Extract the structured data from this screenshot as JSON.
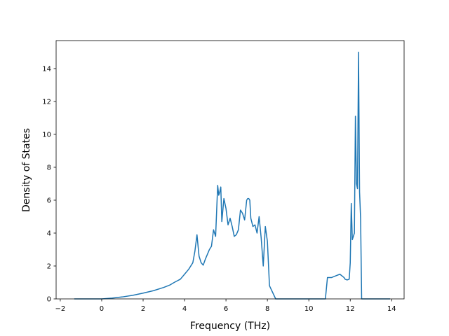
{
  "chart_data": {
    "type": "line",
    "title": "",
    "xlabel": "Frequency (THz)",
    "ylabel": "Density of States",
    "xlim": [
      -2.2,
      14.6
    ],
    "ylim": [
      0,
      15.7
    ],
    "x_ticks": [
      -2,
      0,
      2,
      4,
      6,
      8,
      10,
      12,
      14
    ],
    "y_ticks": [
      0,
      2,
      4,
      6,
      8,
      10,
      12,
      14
    ],
    "x_tick_labels": [
      "−2",
      "0",
      "2",
      "4",
      "6",
      "8",
      "10",
      "12",
      "14"
    ],
    "y_tick_labels": [
      "0",
      "2",
      "4",
      "6",
      "8",
      "10",
      "12",
      "14"
    ],
    "grid": false,
    "series": [
      {
        "color": "#1f77b4",
        "x": [
          -1.3,
          0.0,
          0.5,
          1.0,
          1.5,
          2.0,
          2.5,
          3.0,
          3.3,
          3.5,
          3.8,
          4.0,
          4.2,
          4.4,
          4.5,
          4.6,
          4.7,
          4.8,
          4.9,
          5.0,
          5.1,
          5.2,
          5.3,
          5.4,
          5.5,
          5.6,
          5.65,
          5.7,
          5.75,
          5.8,
          5.9,
          6.0,
          6.1,
          6.2,
          6.3,
          6.4,
          6.5,
          6.6,
          6.7,
          6.8,
          6.9,
          7.0,
          7.05,
          7.1,
          7.15,
          7.2,
          7.3,
          7.4,
          7.5,
          7.6,
          7.7,
          7.8,
          7.9,
          8.0,
          8.1,
          8.4,
          10.8,
          10.9,
          11.1,
          11.3,
          11.5,
          11.7,
          11.75,
          11.85,
          11.95,
          12.0,
          12.05,
          12.1,
          12.2,
          12.25,
          12.3,
          12.35,
          12.4,
          12.45,
          12.5,
          12.55,
          12.65,
          12.7,
          13.9
        ],
        "y": [
          0.0,
          0.0,
          0.05,
          0.12,
          0.22,
          0.35,
          0.5,
          0.7,
          0.85,
          1.0,
          1.2,
          1.5,
          1.8,
          2.2,
          2.9,
          3.9,
          2.6,
          2.2,
          2.05,
          2.4,
          2.7,
          3.0,
          3.2,
          4.2,
          3.8,
          6.9,
          6.3,
          6.5,
          6.8,
          4.7,
          6.1,
          5.5,
          4.5,
          4.9,
          4.4,
          3.8,
          3.9,
          4.2,
          5.4,
          5.2,
          4.8,
          6.0,
          6.1,
          6.1,
          6.0,
          4.9,
          4.4,
          4.5,
          4.0,
          5.0,
          3.7,
          2.0,
          4.4,
          3.5,
          0.8,
          0.0,
          0.0,
          1.3,
          1.3,
          1.4,
          1.5,
          1.3,
          1.2,
          1.15,
          1.2,
          2.2,
          5.8,
          3.6,
          4.0,
          11.1,
          7.0,
          6.7,
          15.0,
          6.5,
          4.9,
          0.0,
          0.0,
          0.0,
          0.0
        ]
      }
    ]
  }
}
